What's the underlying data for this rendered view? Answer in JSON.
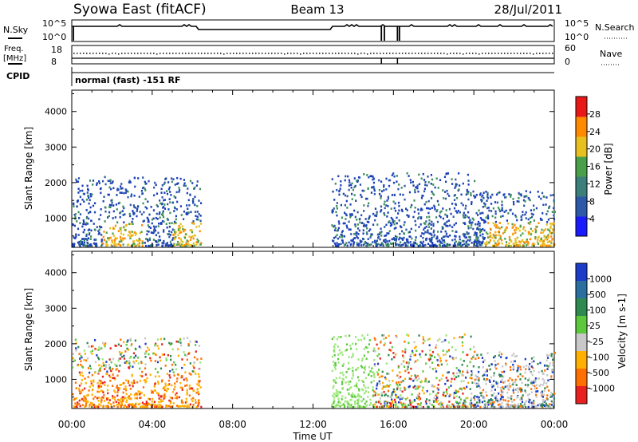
{
  "header": {
    "station": "Syowa East (fitACF)",
    "beam": "Beam 13",
    "date": "28/Jul/2011"
  },
  "panels": {
    "nsky_label": "N.Sky",
    "nsearch_label": "N.Search",
    "nsky_ticks": [
      "10^5",
      "10^0"
    ],
    "nsearch_ticks": [
      "10^5",
      "10^0"
    ],
    "freq_label_1": "Freq.",
    "freq_label_2": "[MHz]",
    "freq_ticks": [
      "18",
      "8"
    ],
    "nave_label": "Nave",
    "nave_ticks": [
      "60",
      "0"
    ],
    "cpid_label": "CPID",
    "cpid_text": "normal (fast) -151 RF"
  },
  "chart_data": [
    {
      "type": "heatmap",
      "name": "power",
      "xlabel": "Time UT",
      "ylabel": "Slant Range [km]",
      "x_ticks": [
        "00:00",
        "04:00",
        "08:00",
        "12:00",
        "16:00",
        "20:00",
        "00:00"
      ],
      "x_range_hours": [
        0,
        24
      ],
      "y_ticks": [
        1000,
        2000,
        3000,
        4000
      ],
      "ylim": [
        180,
        4600
      ],
      "colorbar": {
        "label": "Power [dB]",
        "ticks": [
          "4",
          "8",
          "12",
          "16",
          "20",
          "24",
          "28"
        ],
        "colors": [
          "#1a1aff",
          "#2d5aa8",
          "#3d7f7a",
          "#4aa04a",
          "#e8c020",
          "#ff8a00",
          "#e81818"
        ],
        "range": [
          0,
          30
        ]
      },
      "echo_regions": [
        {
          "t": [
            0.0,
            6.4
          ],
          "r": [
            250,
            2200
          ]
        },
        {
          "t": [
            12.9,
            20.0
          ],
          "r": [
            250,
            2300
          ]
        },
        {
          "t": [
            20.0,
            24.0
          ],
          "r": [
            250,
            1800
          ]
        }
      ]
    },
    {
      "type": "heatmap",
      "name": "velocity",
      "xlabel": "Time UT",
      "ylabel": "Slant Range [km]",
      "x_ticks": [
        "00:00",
        "04:00",
        "08:00",
        "12:00",
        "16:00",
        "20:00",
        "00:00"
      ],
      "x_range_hours": [
        0,
        24
      ],
      "y_ticks": [
        1000,
        2000,
        3000,
        4000
      ],
      "ylim": [
        180,
        4600
      ],
      "colorbar": {
        "label": "Velocity [m s-1]",
        "ticks": [
          "1000",
          "500",
          "100",
          "25",
          "-25",
          "-100",
          "-500",
          "-1000"
        ],
        "colors": [
          "#1c3cc8",
          "#2a6fa0",
          "#2f8a4f",
          "#5cc83c",
          "#c8c8c8",
          "#ffb000",
          "#ff7000",
          "#e82020"
        ],
        "range": [
          -1200,
          1200
        ]
      },
      "echo_regions": [
        {
          "t": [
            0.0,
            6.4
          ],
          "r": [
            250,
            2200
          ]
        },
        {
          "t": [
            12.9,
            20.0
          ],
          "r": [
            250,
            2300
          ]
        },
        {
          "t": [
            20.0,
            24.0
          ],
          "r": [
            250,
            1800
          ]
        }
      ]
    }
  ]
}
